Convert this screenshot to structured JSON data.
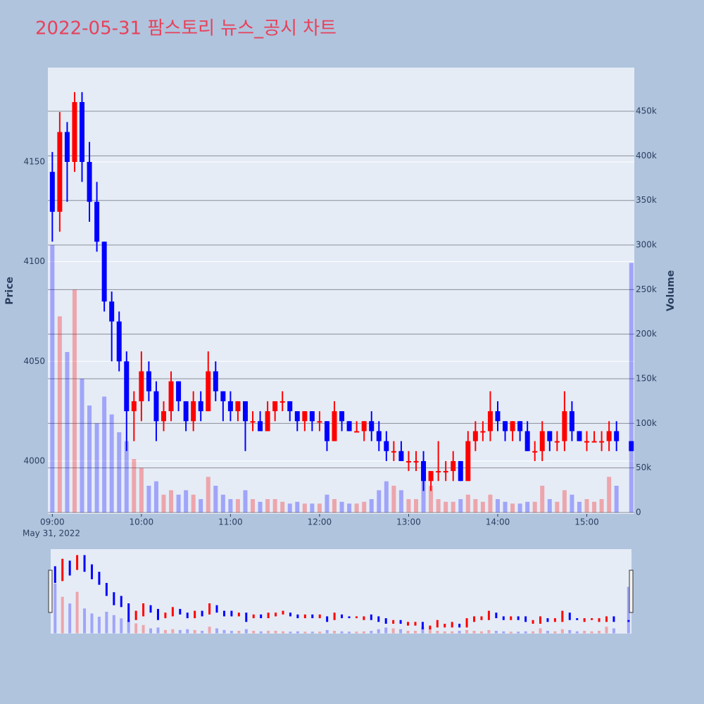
{
  "chart_data": {
    "type": "candlestick",
    "title": "2022-05-31 팜스토리 뉴스_공시 차트",
    "y_label": "Price",
    "y2_label": "Volume",
    "x_date_label": "May 31, 2022",
    "increasing_color": "#ff0000",
    "decreasing_color": "#0000ff",
    "grid": true,
    "rangeslider": true,
    "xlim": [
      "2022-05-31 08:57",
      "2022-05-31 15:32"
    ],
    "xticks": [
      {
        "value": "2022-05-31 09:00",
        "label": "09:00"
      },
      {
        "value": "2022-05-31 10:00",
        "label": "10:00"
      },
      {
        "value": "2022-05-31 11:00",
        "label": "11:00"
      },
      {
        "value": "2022-05-31 12:00",
        "label": "12:00"
      },
      {
        "value": "2022-05-31 13:00",
        "label": "13:00"
      },
      {
        "value": "2022-05-31 14:00",
        "label": "14:00"
      },
      {
        "value": "2022-05-31 15:00",
        "label": "15:00"
      }
    ],
    "ylim": [
      3973.5,
      4197.3
    ],
    "yticks": [
      4000,
      4050,
      4100,
      4150
    ],
    "y2lim": [
      -1600,
      499000
    ],
    "y2ticks": [
      0,
      {
        "value": 50000,
        "label": "50k"
      },
      {
        "value": 100000,
        "label": "100k"
      },
      {
        "value": 150000,
        "label": "150k"
      },
      {
        "value": 200000,
        "label": "200k"
      },
      {
        "value": 250000,
        "label": "250k"
      },
      {
        "value": 300000,
        "label": "300k"
      },
      {
        "value": 350000,
        "label": "350k"
      },
      {
        "value": 400000,
        "label": "400k"
      },
      {
        "value": 450000,
        "label": "450k"
      }
    ],
    "x": [
      "2022-05-31 09:00",
      "2022-05-31 09:05",
      "2022-05-31 09:10",
      "2022-05-31 09:15",
      "2022-05-31 09:20",
      "2022-05-31 09:25",
      "2022-05-31 09:30",
      "2022-05-31 09:35",
      "2022-05-31 09:40",
      "2022-05-31 09:45",
      "2022-05-31 09:50",
      "2022-05-31 09:55",
      "2022-05-31 10:00",
      "2022-05-31 10:05",
      "2022-05-31 10:10",
      "2022-05-31 10:15",
      "2022-05-31 10:20",
      "2022-05-31 10:25",
      "2022-05-31 10:30",
      "2022-05-31 10:35",
      "2022-05-31 10:40",
      "2022-05-31 10:45",
      "2022-05-31 10:50",
      "2022-05-31 10:55",
      "2022-05-31 11:00",
      "2022-05-31 11:05",
      "2022-05-31 11:10",
      "2022-05-31 11:15",
      "2022-05-31 11:20",
      "2022-05-31 11:25",
      "2022-05-31 11:30",
      "2022-05-31 11:35",
      "2022-05-31 11:40",
      "2022-05-31 11:45",
      "2022-05-31 11:50",
      "2022-05-31 11:55",
      "2022-05-31 12:00",
      "2022-05-31 12:05",
      "2022-05-31 12:10",
      "2022-05-31 12:15",
      "2022-05-31 12:20",
      "2022-05-31 12:25",
      "2022-05-31 12:30",
      "2022-05-31 12:35",
      "2022-05-31 12:40",
      "2022-05-31 12:45",
      "2022-05-31 12:50",
      "2022-05-31 12:55",
      "2022-05-31 13:00",
      "2022-05-31 13:05",
      "2022-05-31 13:10",
      "2022-05-31 13:15",
      "2022-05-31 13:20",
      "2022-05-31 13:25",
      "2022-05-31 13:30",
      "2022-05-31 13:35",
      "2022-05-31 13:40",
      "2022-05-31 13:45",
      "2022-05-31 13:50",
      "2022-05-31 13:55",
      "2022-05-31 14:00",
      "2022-05-31 14:05",
      "2022-05-31 14:10",
      "2022-05-31 14:15",
      "2022-05-31 14:20",
      "2022-05-31 14:25",
      "2022-05-31 14:30",
      "2022-05-31 14:35",
      "2022-05-31 14:40",
      "2022-05-31 14:45",
      "2022-05-31 14:50",
      "2022-05-31 14:55",
      "2022-05-31 15:00",
      "2022-05-31 15:05",
      "2022-05-31 15:10",
      "2022-05-31 15:15",
      "2022-05-31 15:20",
      "2022-05-31 15:30"
    ],
    "open": [
      4145,
      4125,
      4165,
      4150,
      4180,
      4150,
      4130,
      4110,
      4080,
      4070,
      4050,
      4025,
      4030,
      4045,
      4035,
      4020,
      4025,
      4040,
      4030,
      4020,
      4030,
      4025,
      4045,
      4035,
      4030,
      4025,
      4030,
      4020,
      4020,
      4015,
      4025,
      4030,
      4030,
      4025,
      4020,
      4025,
      4020,
      4020,
      4010,
      4025,
      4020,
      4015,
      4015,
      4020,
      4015,
      4010,
      4005,
      4005,
      4000,
      4000,
      4000,
      3990,
      3995,
      3995,
      3995,
      4000,
      3990,
      4010,
      4015,
      4015,
      4025,
      4020,
      4015,
      4020,
      4015,
      4005,
      4005,
      4015,
      4010,
      4010,
      4025,
      4015,
      4010,
      4010,
      4010,
      4010,
      4015,
      4010
    ],
    "high": [
      4155,
      4175,
      4170,
      4185,
      4185,
      4160,
      4140,
      4110,
      4085,
      4075,
      4055,
      4035,
      4055,
      4050,
      4040,
      4030,
      4045,
      4040,
      4030,
      4035,
      4035,
      4055,
      4050,
      4035,
      4035,
      4030,
      4030,
      4025,
      4025,
      4030,
      4030,
      4035,
      4030,
      4025,
      4025,
      4025,
      4025,
      4020,
      4030,
      4025,
      4020,
      4020,
      4020,
      4025,
      4020,
      4015,
      4010,
      4010,
      4005,
      4005,
      4005,
      3995,
      4010,
      4000,
      4005,
      4000,
      4015,
      4020,
      4020,
      4035,
      4030,
      4020,
      4020,
      4020,
      4020,
      4010,
      4020,
      4015,
      4015,
      4035,
      4030,
      4015,
      4015,
      4015,
      4015,
      4020,
      4020,
      4010
    ],
    "low": [
      4110,
      4115,
      4130,
      4145,
      4140,
      4120,
      4105,
      4075,
      4050,
      4045,
      4005,
      4010,
      4020,
      4030,
      4010,
      4015,
      4020,
      4025,
      4015,
      4015,
      4020,
      4025,
      4030,
      4020,
      4020,
      4020,
      4005,
      4015,
      4015,
      4015,
      4020,
      4025,
      4020,
      4015,
      4015,
      4015,
      4015,
      4005,
      4010,
      4015,
      4015,
      4015,
      4010,
      4010,
      4005,
      4000,
      4000,
      4000,
      3995,
      3995,
      3985,
      3985,
      3990,
      3990,
      3990,
      3990,
      3990,
      4005,
      4010,
      4010,
      4015,
      4010,
      4010,
      4010,
      4005,
      4000,
      4000,
      4005,
      4005,
      4005,
      4010,
      4010,
      4005,
      4010,
      4005,
      4005,
      4005,
      4005
    ],
    "close": [
      4125,
      4165,
      4150,
      4180,
      4150,
      4130,
      4110,
      4080,
      4070,
      4050,
      4025,
      4030,
      4045,
      4035,
      4020,
      4025,
      4040,
      4030,
      4020,
      4030,
      4025,
      4045,
      4035,
      4030,
      4025,
      4030,
      4020,
      4020,
      4015,
      4025,
      4030,
      4030,
      4025,
      4020,
      4025,
      4020,
      4020,
      4010,
      4025,
      4020,
      4015,
      4015,
      4020,
      4015,
      4010,
      4005,
      4005,
      4000,
      4000,
      4000,
      3990,
      3995,
      3995,
      3995,
      4000,
      3990,
      4010,
      4015,
      4015,
      4025,
      4020,
      4015,
      4020,
      4015,
      4005,
      4005,
      4015,
      4010,
      4010,
      4025,
      4015,
      4010,
      4010,
      4010,
      4010,
      4015,
      4010,
      4005
    ],
    "volume": [
      300000,
      220000,
      180000,
      250000,
      150000,
      120000,
      100000,
      130000,
      110000,
      90000,
      80000,
      60000,
      50000,
      30000,
      35000,
      20000,
      25000,
      20000,
      25000,
      20000,
      15000,
      40000,
      30000,
      20000,
      15000,
      15000,
      25000,
      15000,
      12000,
      15000,
      15000,
      12000,
      10000,
      12000,
      10000,
      10000,
      10000,
      20000,
      15000,
      12000,
      10000,
      10000,
      12000,
      15000,
      25000,
      35000,
      30000,
      25000,
      15000,
      15000,
      40000,
      30000,
      15000,
      12000,
      12000,
      15000,
      20000,
      15000,
      12000,
      20000,
      15000,
      12000,
      10000,
      10000,
      12000,
      12000,
      30000,
      15000,
      12000,
      25000,
      20000,
      12000,
      15000,
      12000,
      15000,
      40000,
      30000,
      280000
    ]
  }
}
